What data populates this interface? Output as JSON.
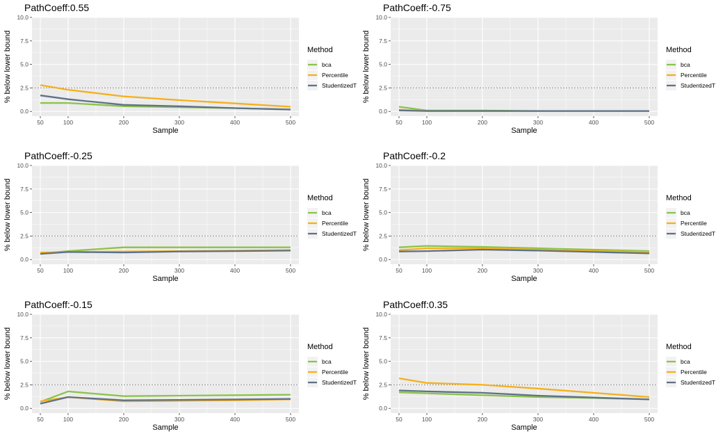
{
  "figure": {
    "background": "#ffffff",
    "panel_bg": "#ebebeb",
    "grid_color": "#ffffff",
    "reference_line_color": "#8c8c8c"
  },
  "chart_data": [
    {
      "type": "line",
      "title": "PathCoeff:0.55",
      "xlabel": "Sample",
      "ylabel": "% below lower bound",
      "x": [
        50,
        100,
        200,
        300,
        400,
        500
      ],
      "xticks": [
        "50",
        "100",
        "200",
        "300",
        "400",
        "500"
      ],
      "yticks": [
        "0.0",
        "2.5",
        "5.0",
        "7.5",
        "10.0"
      ],
      "xlim": [
        35,
        515
      ],
      "ylim": [
        -0.5,
        10
      ],
      "reference_line": 2.5,
      "legend": {
        "title": "Method",
        "position": "right"
      },
      "series": [
        {
          "name": "bca",
          "color": "#8bc34a",
          "values": [
            0.9,
            0.9,
            0.55,
            0.45,
            0.35,
            0.2
          ]
        },
        {
          "name": "Percentile",
          "color": "#f5b01a",
          "values": [
            2.8,
            2.3,
            1.6,
            1.2,
            0.85,
            0.5
          ]
        },
        {
          "name": "StudentizedT",
          "color": "#5f7186",
          "values": [
            1.7,
            1.3,
            0.7,
            0.55,
            0.35,
            0.2
          ]
        }
      ]
    },
    {
      "type": "line",
      "title": "PathCoeff:-0.75",
      "xlabel": "Sample",
      "ylabel": "% below lower bound",
      "x": [
        50,
        100,
        200,
        300,
        400,
        500
      ],
      "xticks": [
        "50",
        "100",
        "200",
        "300",
        "400",
        "500"
      ],
      "yticks": [
        "0.0",
        "2.5",
        "5.0",
        "7.5",
        "10.0"
      ],
      "xlim": [
        35,
        515
      ],
      "ylim": [
        -0.5,
        10
      ],
      "reference_line": 2.5,
      "legend": {
        "title": "Method",
        "position": "right"
      },
      "series": [
        {
          "name": "bca",
          "color": "#8bc34a",
          "values": [
            0.5,
            0.1,
            0.1,
            0.05,
            0.05,
            0.05
          ]
        },
        {
          "name": "Percentile",
          "color": "#f5b01a",
          "values": [
            0.2,
            0.05,
            0.05,
            0.05,
            0.05,
            0.05
          ]
        },
        {
          "name": "StudentizedT",
          "color": "#5f7186",
          "values": [
            0.1,
            0.05,
            0.05,
            0.05,
            0.05,
            0.05
          ]
        }
      ]
    },
    {
      "type": "line",
      "title": "PathCoeff:-0.25",
      "xlabel": "Sample",
      "ylabel": "% below lower bound",
      "x": [
        50,
        100,
        200,
        300,
        400,
        500
      ],
      "xticks": [
        "50",
        "100",
        "200",
        "300",
        "400",
        "500"
      ],
      "yticks": [
        "0.0",
        "2.5",
        "5.0",
        "7.5",
        "10.0"
      ],
      "xlim": [
        35,
        515
      ],
      "ylim": [
        -0.5,
        10
      ],
      "reference_line": 2.5,
      "legend": {
        "title": "Method",
        "position": "right"
      },
      "series": [
        {
          "name": "bca",
          "color": "#8bc34a",
          "values": [
            0.65,
            0.9,
            1.3,
            1.3,
            1.3,
            1.3
          ]
        },
        {
          "name": "Percentile",
          "color": "#f5b01a",
          "values": [
            0.75,
            0.8,
            0.85,
            0.9,
            0.95,
            1.0
          ]
        },
        {
          "name": "StudentizedT",
          "color": "#5f7186",
          "values": [
            0.6,
            0.8,
            0.75,
            0.85,
            0.9,
            0.95
          ]
        }
      ]
    },
    {
      "type": "line",
      "title": "PathCoeff:-0.2",
      "xlabel": "Sample",
      "ylabel": "% below lower bound",
      "x": [
        50,
        100,
        200,
        300,
        400,
        500
      ],
      "xticks": [
        "50",
        "100",
        "200",
        "300",
        "400",
        "500"
      ],
      "yticks": [
        "0.0",
        "2.5",
        "5.0",
        "7.5",
        "10.0"
      ],
      "xlim": [
        35,
        515
      ],
      "ylim": [
        -0.5,
        10
      ],
      "reference_line": 2.5,
      "legend": {
        "title": "Method",
        "position": "right"
      },
      "series": [
        {
          "name": "bca",
          "color": "#8bc34a",
          "values": [
            1.3,
            1.45,
            1.35,
            1.2,
            1.05,
            0.9
          ]
        },
        {
          "name": "Percentile",
          "color": "#f5b01a",
          "values": [
            1.0,
            1.2,
            1.2,
            1.05,
            0.9,
            0.8
          ]
        },
        {
          "name": "StudentizedT",
          "color": "#5f7186",
          "values": [
            0.85,
            0.9,
            1.05,
            0.95,
            0.8,
            0.65
          ]
        }
      ]
    },
    {
      "type": "line",
      "title": "PathCoeff:-0.15",
      "xlabel": "Sample",
      "ylabel": "% below lower bound",
      "x": [
        50,
        100,
        200,
        300,
        400,
        500
      ],
      "xticks": [
        "50",
        "100",
        "200",
        "300",
        "400",
        "500"
      ],
      "yticks": [
        "0.0",
        "2.5",
        "5.0",
        "7.5",
        "10.0"
      ],
      "xlim": [
        35,
        515
      ],
      "ylim": [
        -0.5,
        10
      ],
      "reference_line": 2.5,
      "legend": {
        "title": "Method",
        "position": "right"
      },
      "series": [
        {
          "name": "bca",
          "color": "#8bc34a",
          "values": [
            0.7,
            1.8,
            1.3,
            1.35,
            1.4,
            1.45
          ]
        },
        {
          "name": "Percentile",
          "color": "#f5b01a",
          "values": [
            0.75,
            1.2,
            0.75,
            0.8,
            0.85,
            0.95
          ]
        },
        {
          "name": "StudentizedT",
          "color": "#5f7186",
          "values": [
            0.5,
            1.2,
            0.85,
            0.9,
            0.95,
            1.0
          ]
        }
      ]
    },
    {
      "type": "line",
      "title": "PathCoeff:0.35",
      "xlabel": "Sample",
      "ylabel": "% below lower bound",
      "x": [
        50,
        100,
        200,
        300,
        400,
        500
      ],
      "xticks": [
        "50",
        "100",
        "200",
        "300",
        "400",
        "500"
      ],
      "yticks": [
        "0.0",
        "2.5",
        "5.0",
        "7.5",
        "10.0"
      ],
      "xlim": [
        35,
        515
      ],
      "ylim": [
        -0.5,
        10
      ],
      "reference_line": 2.5,
      "legend": {
        "title": "Method",
        "position": "right"
      },
      "series": [
        {
          "name": "bca",
          "color": "#8bc34a",
          "values": [
            1.7,
            1.6,
            1.4,
            1.2,
            1.1,
            0.95
          ]
        },
        {
          "name": "Percentile",
          "color": "#f5b01a",
          "values": [
            3.2,
            2.7,
            2.5,
            2.1,
            1.65,
            1.2
          ]
        },
        {
          "name": "StudentizedT",
          "color": "#5f7186",
          "values": [
            1.9,
            1.8,
            1.65,
            1.35,
            1.15,
            0.95
          ]
        }
      ]
    }
  ]
}
